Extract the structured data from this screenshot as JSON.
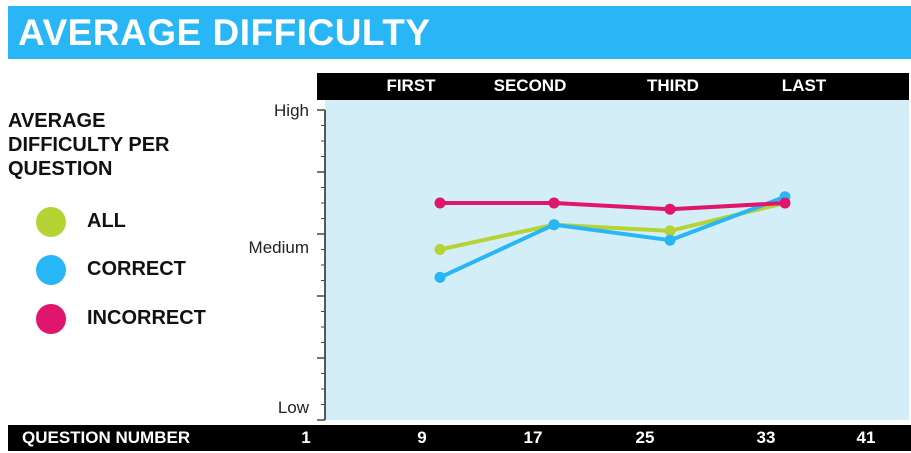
{
  "header": {
    "title": "AVERAGE DIFFICULTY"
  },
  "legend": {
    "title": "AVERAGE DIFFICULTY PER QUESTION",
    "items": [
      {
        "label": "ALL",
        "color": "#b5d334"
      },
      {
        "label": "CORRECT",
        "color": "#29b6f6"
      },
      {
        "label": "INCORRECT",
        "color": "#e0166e"
      }
    ]
  },
  "sections": [
    "FIRST",
    "SECOND",
    "THIRD",
    "LAST"
  ],
  "xaxis": {
    "label": "QUESTION NUMBER",
    "ticks": [
      "1",
      "9",
      "17",
      "25",
      "33",
      "41"
    ]
  },
  "yaxis": {
    "ticks": [
      "High",
      "Medium",
      "Low"
    ]
  },
  "colors": {
    "plot_background": "#d4eef8",
    "header": "#29b6f6"
  },
  "chart_data": {
    "type": "line",
    "title": "AVERAGE DIFFICULTY",
    "xlabel": "QUESTION NUMBER",
    "ylabel": "AVERAGE DIFFICULTY PER QUESTION",
    "x_ticks": [
      1,
      9,
      17,
      25,
      33,
      41
    ],
    "xlim": [
      1,
      41
    ],
    "y_ticks": [
      "Low",
      "Medium",
      "High"
    ],
    "ylim": [
      0,
      1
    ],
    "grid": false,
    "legend_placement": "left",
    "x": [
      9,
      17,
      25,
      33
    ],
    "series": [
      {
        "name": "ALL",
        "color": "#b5d334",
        "values": [
          0.55,
          0.63,
          0.61,
          0.7
        ]
      },
      {
        "name": "CORRECT",
        "color": "#29b6f6",
        "values": [
          0.46,
          0.63,
          0.58,
          0.72
        ]
      },
      {
        "name": "INCORRECT",
        "color": "#e0166e",
        "values": [
          0.7,
          0.7,
          0.68,
          0.7
        ]
      }
    ]
  }
}
